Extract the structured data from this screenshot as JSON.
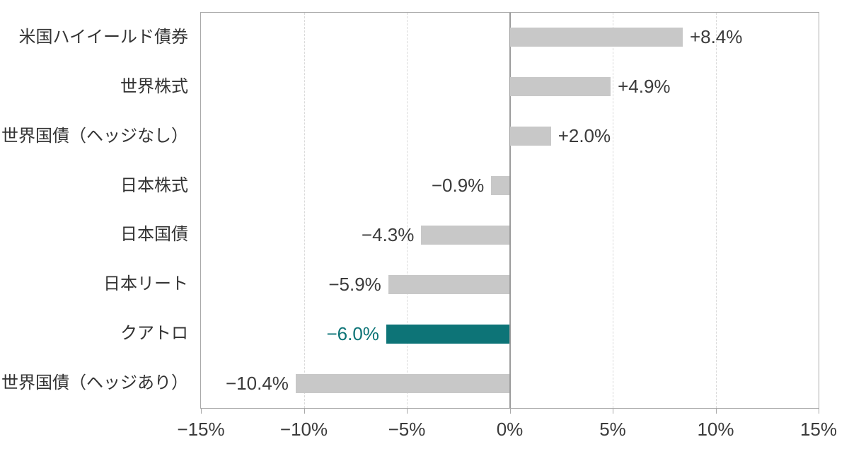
{
  "chart_data": {
    "type": "bar",
    "orientation": "horizontal",
    "title": "",
    "xlabel": "",
    "ylabel": "",
    "categories": [
      "米国ハイイールド債券",
      "世界株式",
      "世界国債（ヘッジなし）",
      "日本株式",
      "日本国債",
      "日本リート",
      "クアトロ",
      "世界国債（ヘッジあり）"
    ],
    "values": [
      8.4,
      4.9,
      2.0,
      -0.9,
      -4.3,
      -5.9,
      -6.0,
      -10.4
    ],
    "value_labels": [
      "+8.4%",
      "+4.9%",
      "+2.0%",
      "−0.9%",
      "−4.3%",
      "−5.9%",
      "−6.0%",
      "−10.4%"
    ],
    "highlight_index": 6,
    "xlim": [
      -15,
      15
    ],
    "x_tick_values": [
      -15,
      -10,
      -5,
      0,
      5,
      10,
      15
    ],
    "x_ticks": [
      "−15%",
      "−10%",
      "−5%",
      "0%",
      "5%",
      "10%",
      "15%"
    ],
    "grid": "vertical dashed gridlines at 5% intervals, solid line at 0%",
    "legend": "none",
    "colors": {
      "bar": "#c8c8c8",
      "highlight": "#0d7477",
      "highlight_text": "#0d7477",
      "gridline": "#d9d9d9",
      "axis": "#a9a9a9",
      "zero_line": "#9b9b9b",
      "text": "#3b3b3b"
    }
  }
}
